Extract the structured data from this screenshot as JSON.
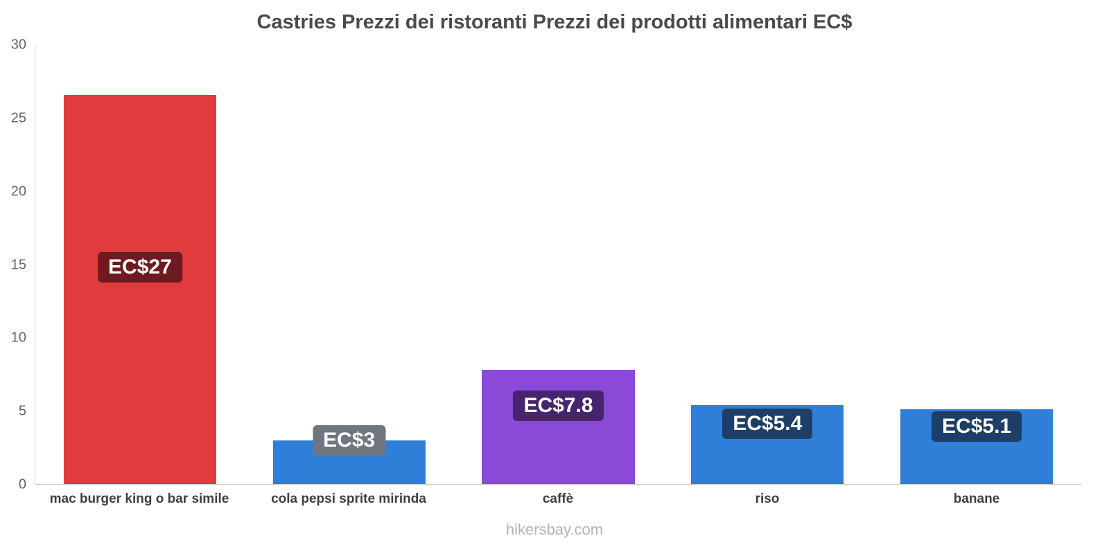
{
  "title": "Castries Prezzi dei ristoranti Prezzi dei prodotti alimentari EC$",
  "footer": "hikersbay.com",
  "chart_data": {
    "type": "bar",
    "title": "Castries Prezzi dei ristoranti Prezzi dei prodotti alimentari EC$",
    "categories": [
      "mac burger king o bar simile",
      "cola pepsi sprite mirinda",
      "caffè",
      "riso",
      "banane"
    ],
    "values": [
      26.6,
      3,
      7.8,
      5.4,
      5.1
    ],
    "value_labels": [
      "EC$27",
      "EC$3",
      "EC$7.8",
      "EC$5.4",
      "EC$5.1"
    ],
    "bar_colors": [
      "#e23b3d",
      "#2f7fd9",
      "#8a49d6",
      "#2f7fd9",
      "#2f7fd9"
    ],
    "label_bg_colors": [
      "#6e1a20",
      "#6f7680",
      "#47246e",
      "#1d3e66",
      "#1d3e66"
    ],
    "label_y": [
      14.8,
      3.0,
      5.35,
      4.1,
      3.95
    ],
    "ylim": [
      0,
      30
    ],
    "yticks": [
      0,
      5,
      10,
      15,
      20,
      25,
      30
    ],
    "grid": false,
    "legend": "none",
    "xlabel": "",
    "ylabel": ""
  }
}
